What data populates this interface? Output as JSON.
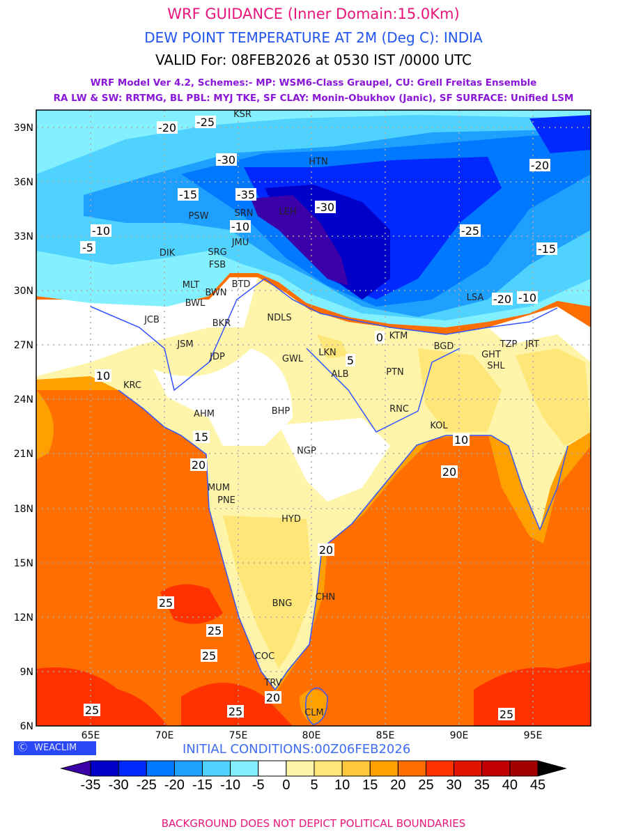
{
  "header": {
    "title": "WRF GUIDANCE (Inner Domain:15.0Km)",
    "subtitle": "DEW POINT TEMPERATURE AT 2M (Deg C): INDIA",
    "valid": "VALID For: 08FEB2026 at 0530 IST /0000 UTC",
    "schemes_line1": "WRF Model Ver 4.2, Schemes:- MP: WSM6-Class Graupel, CU: Grell Freitas Ensemble",
    "schemes_line2": "RA LW & SW: RRTMG, BL PBL: MYJ TKE, SF CLAY: Monin-Obukhov (Janic), SF SURFACE: Unified LSM"
  },
  "map": {
    "lat_labels": [
      "39N",
      "36N",
      "33N",
      "30N",
      "27N",
      "24N",
      "21N",
      "18N",
      "15N",
      "12N",
      "9N",
      "6N"
    ],
    "lon_labels": [
      "65E",
      "70E",
      "75E",
      "80E",
      "85E",
      "90E",
      "95E"
    ],
    "cities": [
      "KSR",
      "HTN",
      "PSW",
      "SRN",
      "LEH",
      "JMU",
      "DIK",
      "SRG",
      "FSB",
      "MLT",
      "BWN",
      "BTD",
      "BWL",
      "JCB",
      "BKR",
      "NDLS",
      "JSM",
      "JDP",
      "GWL",
      "LKN",
      "ALB",
      "PTN",
      "RNC",
      "KOL",
      "KTM",
      "BGD",
      "GHT",
      "SHL",
      "TZP",
      "JRT",
      "LSA",
      "KRC",
      "AHM",
      "BHP",
      "NGP",
      "MUM",
      "PNE",
      "HYD",
      "CHN",
      "BNG",
      "COC",
      "TRV",
      "CLM"
    ],
    "contour_labels": [
      "-25",
      "-20",
      "-30",
      "-15",
      "-10",
      "-35",
      "-30",
      "-25",
      "-20",
      "-10",
      "-5",
      "-15",
      "-20",
      "-10",
      "0",
      "5",
      "10",
      "15",
      "20",
      "25",
      "20",
      "25",
      "25",
      "25",
      "20",
      "10",
      "20",
      "25",
      "25"
    ]
  },
  "footer": {
    "brand": "WEACLIM",
    "initial_conditions": "INITIAL CONDITIONS:00Z06FEB2026",
    "disclaimer": "BACKGROUND DOES NOT DEPICT POLITICAL BOUNDARIES"
  },
  "colorbar": {
    "labels": [
      "-35",
      "-30",
      "-25",
      "-20",
      "-15",
      "-10",
      "-5",
      "0",
      "5",
      "10",
      "15",
      "20",
      "25",
      "30",
      "35",
      "40",
      "45"
    ],
    "colors": [
      "#0000c8",
      "#0028ff",
      "#0078ff",
      "#1ea0ff",
      "#50d2ff",
      "#82f0ff",
      "#ffffff",
      "#fff5aa",
      "#ffe678",
      "#ffc83c",
      "#ffa000",
      "#ff6e00",
      "#ff3200",
      "#e11400",
      "#c00000",
      "#a50000"
    ],
    "below_color": "#3c00a8",
    "above_color": "#000000"
  }
}
